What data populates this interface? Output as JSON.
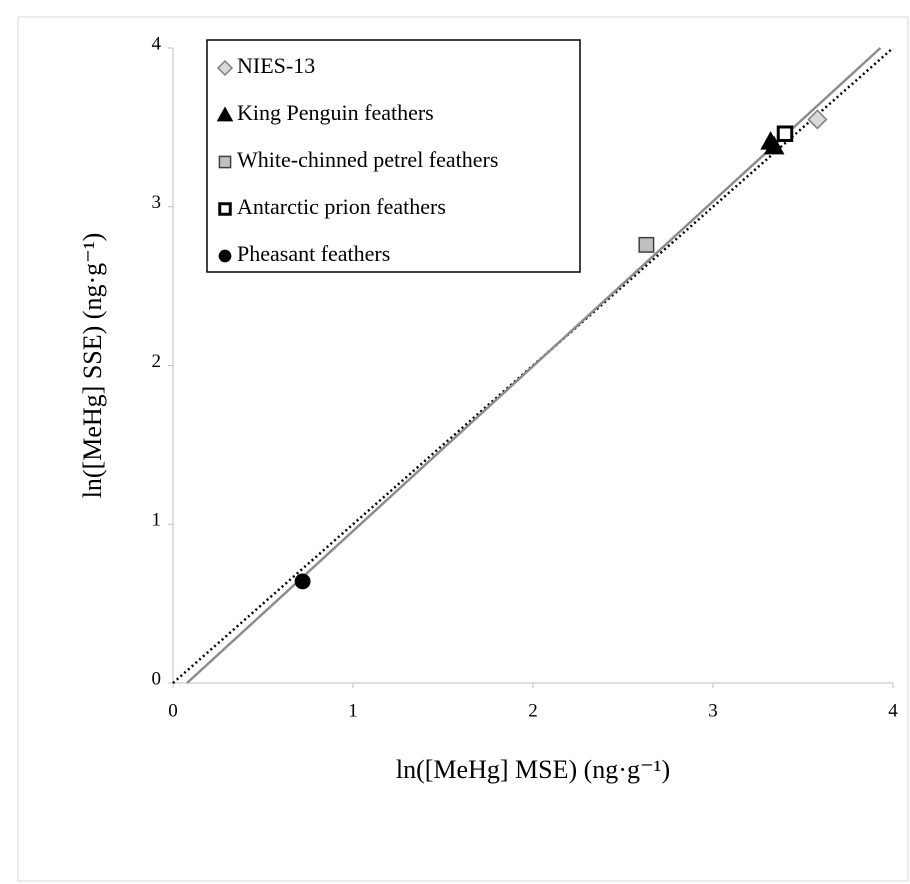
{
  "chart_data": {
    "type": "scatter",
    "x_label": "ln([MeHg] MSE) (ng·g⁻¹)",
    "y_label": "ln([MeHg] SSE) (ng·g⁻¹)",
    "xlim": [
      0,
      4
    ],
    "ylim": [
      0,
      4
    ],
    "xticks": [
      0,
      1,
      2,
      3,
      4
    ],
    "yticks": [
      0,
      1,
      2,
      3,
      4
    ],
    "legend": "top-left",
    "series": [
      {
        "name": "NIES-13",
        "marker": "diamond",
        "color": "#d9d9d9",
        "x": [
          3.58
        ],
        "values": [
          3.55
        ]
      },
      {
        "name": "King Penguin feathers",
        "marker": "triangle",
        "color": "#000000",
        "x": [
          3.32,
          3.34
        ],
        "values": [
          3.41,
          3.38
        ]
      },
      {
        "name": "White-chinned petrel feathers",
        "marker": "square",
        "color": "#bfbfbf",
        "x": [
          2.63
        ],
        "values": [
          2.76
        ]
      },
      {
        "name": "Antarctic prion feathers",
        "marker": "open-square",
        "color": "#ffffff",
        "x": [
          3.4
        ],
        "values": [
          3.46
        ]
      },
      {
        "name": "Pheasant feathers",
        "marker": "circle",
        "color": "#000000",
        "x": [
          0.72
        ],
        "values": [
          0.64
        ]
      }
    ],
    "lines": [
      {
        "style": "dotted",
        "color": "#000000",
        "x": [
          0,
          4
        ],
        "values": [
          0,
          4
        ]
      },
      {
        "style": "solid",
        "color": "#8c8c8c",
        "x": [
          0.078,
          3.93
        ],
        "values": [
          0,
          4
        ]
      }
    ]
  }
}
